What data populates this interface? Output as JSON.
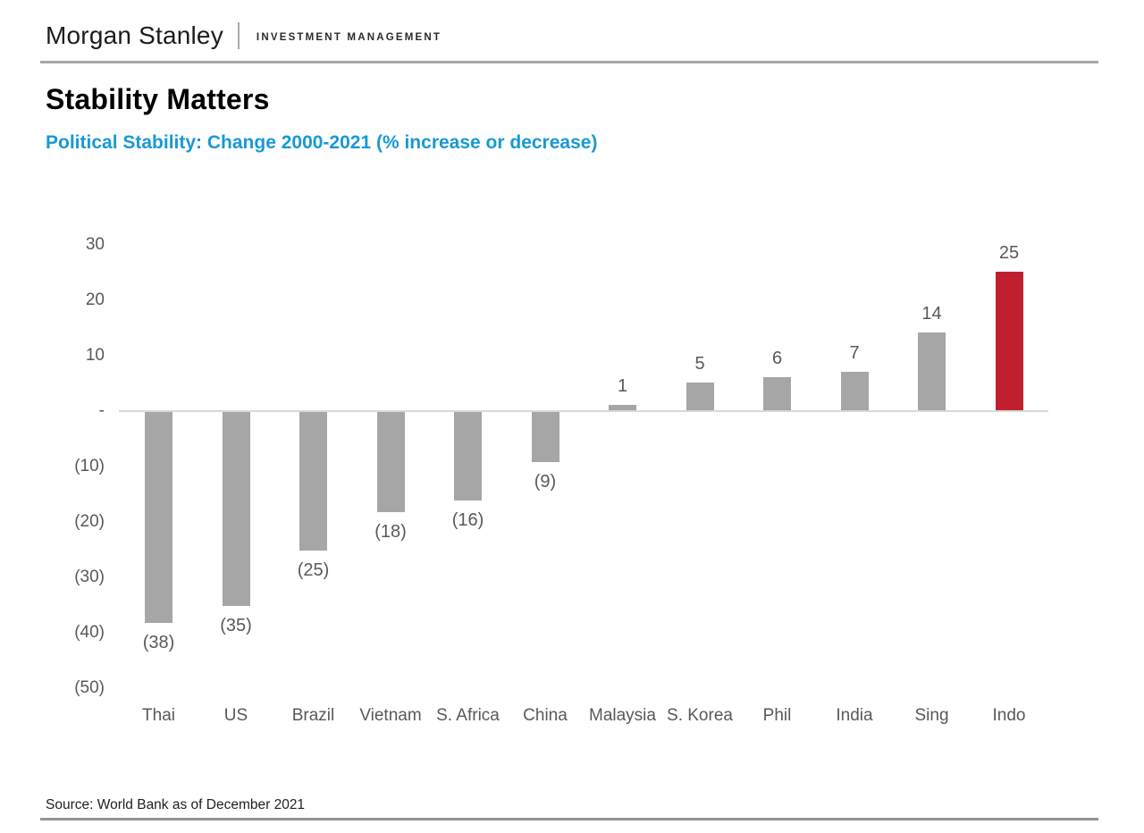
{
  "header": {
    "brand": "Morgan Stanley",
    "division": "INVESTMENT MANAGEMENT"
  },
  "title": "Stability Matters",
  "subtitle": "Political Stability: Change 2000-2021 (% increase or decrease)",
  "source": "Source: World Bank as of December 2021",
  "colors": {
    "subtitle_blue": "#1899d6",
    "title_black": "#000000",
    "axis_text": "#595959",
    "bar_default": "#a6a6a6",
    "bar_highlight": "#c0202e",
    "baseline": "#d9d9d9"
  },
  "chart_data": {
    "type": "bar",
    "title": "Political Stability: Change 2000-2021 (% increase or decrease)",
    "xlabel": "",
    "ylabel": "",
    "categories": [
      "Thai",
      "US",
      "Brazil",
      "Vietnam",
      "S. Africa",
      "China",
      "Malaysia",
      "S. Korea",
      "Phil",
      "India",
      "Sing",
      "Indo"
    ],
    "values": [
      -38,
      -35,
      -25,
      -18,
      -16,
      -9,
      1,
      5,
      6,
      7,
      14,
      25
    ],
    "value_labels": [
      "(38)",
      "(35)",
      "(25)",
      "(18)",
      "(16)",
      "(9)",
      "1",
      "5",
      "6",
      "7",
      "14",
      "25"
    ],
    "highlight_category": "Indo",
    "highlight_index": 11,
    "y_tick_labels": [
      "30",
      "20",
      "10",
      "-",
      "(10)",
      "(20)",
      "(30)",
      "(40)",
      "(50)"
    ],
    "y_tick_values": [
      30,
      20,
      10,
      0,
      -10,
      -20,
      -30,
      -40,
      -50
    ],
    "ylim": [
      -50,
      30
    ],
    "grid": false,
    "legend": false
  }
}
